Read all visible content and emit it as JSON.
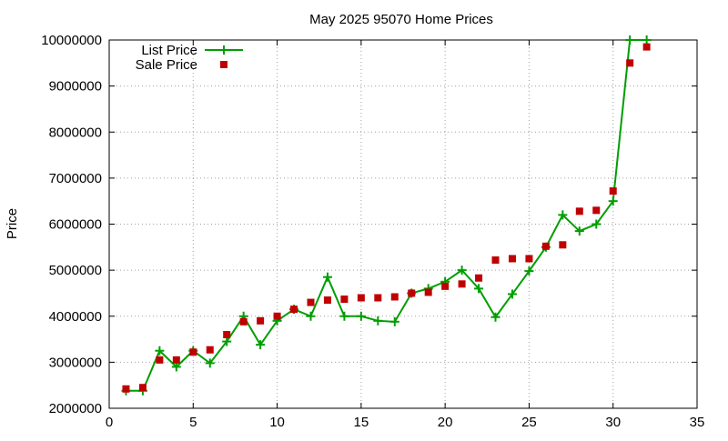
{
  "chart_data": {
    "type": "line",
    "title": "May 2025 95070 Home Prices",
    "xlabel": "",
    "ylabel": "Price",
    "xlim": [
      0,
      35
    ],
    "ylim": [
      2000000,
      10000000
    ],
    "xticks": [
      0,
      5,
      10,
      15,
      20,
      25,
      30,
      35
    ],
    "yticks": [
      2000000,
      3000000,
      4000000,
      5000000,
      6000000,
      7000000,
      8000000,
      9000000,
      10000000
    ],
    "grid": true,
    "legend_position": "top-left",
    "series": [
      {
        "name": "List Price",
        "kind": "line+points",
        "color": "#009e00",
        "marker": "plus",
        "x": [
          1,
          2,
          3,
          4,
          5,
          6,
          7,
          8,
          9,
          10,
          11,
          12,
          13,
          14,
          15,
          16,
          17,
          18,
          19,
          20,
          21,
          22,
          23,
          24,
          25,
          26,
          27,
          28,
          29,
          30,
          31,
          32
        ],
        "values": [
          2380000,
          2380000,
          3250000,
          2900000,
          3250000,
          2980000,
          3450000,
          4000000,
          3380000,
          3900000,
          4150000,
          4000000,
          4850000,
          4000000,
          4000000,
          3900000,
          3880000,
          4500000,
          4600000,
          4750000,
          5000000,
          4600000,
          3980000,
          4480000,
          4980000,
          5500000,
          6200000,
          5850000,
          6000000,
          6500000,
          10000000,
          10000000
        ]
      },
      {
        "name": "Sale Price",
        "kind": "points",
        "color": "#c00000",
        "marker": "square",
        "x": [
          1,
          2,
          3,
          4,
          5,
          6,
          7,
          8,
          9,
          10,
          11,
          12,
          13,
          14,
          15,
          16,
          17,
          18,
          19,
          20,
          21,
          22,
          23,
          24,
          25,
          26,
          27,
          28,
          29,
          30,
          31,
          32
        ],
        "values": [
          2420000,
          2450000,
          3050000,
          3050000,
          3220000,
          3270000,
          3600000,
          3880000,
          3900000,
          4000000,
          4150000,
          4300000,
          4350000,
          4370000,
          4400000,
          4400000,
          4420000,
          4500000,
          4520000,
          4650000,
          4700000,
          4830000,
          5220000,
          5250000,
          5250000,
          5520000,
          5550000,
          6280000,
          6300000,
          6720000,
          9500000,
          9850000
        ]
      }
    ]
  }
}
